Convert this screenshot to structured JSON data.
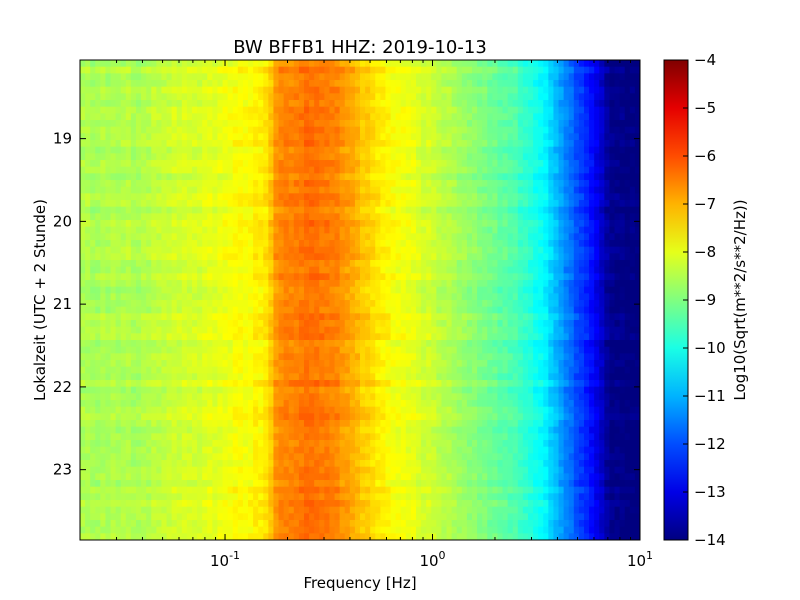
{
  "chart_data": {
    "type": "heatmap",
    "title": "BW BFFB1 HHZ: 2019-10-13",
    "xlabel": "Frequency [Hz]",
    "ylabel": "Lokalzeit (UTC + 2 Stunde)",
    "x_scale": "log",
    "xlim": [
      0.02,
      10
    ],
    "x_ticks": [
      {
        "value": 0.1,
        "base": "10",
        "exp": "-1"
      },
      {
        "value": 1,
        "base": "10",
        "exp": "0"
      },
      {
        "value": 10,
        "base": "10",
        "exp": "1"
      }
    ],
    "ylim": [
      18.05,
      23.85
    ],
    "y_inverted": true,
    "y_ticks": [
      "19",
      "20",
      "21",
      "22",
      "23"
    ],
    "colorbar": {
      "label": "Log10(Sqrt(m**2/s**2/Hz))",
      "range": [
        -14,
        -4
      ],
      "ticks": [
        "−4",
        "−5",
        "−6",
        "−7",
        "−8",
        "−9",
        "−10",
        "−11",
        "−12",
        "−13",
        "−14"
      ],
      "colormap": "jet"
    },
    "spectrum_profile": {
      "frequency_hz": [
        0.02,
        0.04,
        0.06,
        0.08,
        0.1,
        0.13,
        0.16,
        0.18,
        0.2,
        0.25,
        0.3,
        0.35,
        0.4,
        0.5,
        0.6,
        0.8,
        1.0,
        1.3,
        1.6,
        2.0,
        2.5,
        3.0,
        3.5,
        4.0,
        5.0,
        6.0,
        7.0,
        8.0,
        10.0
      ],
      "log10_amplitude": [
        -8.6,
        -8.5,
        -8.2,
        -8.1,
        -7.9,
        -7.8,
        -7.5,
        -6.6,
        -6.5,
        -6.4,
        -6.5,
        -6.6,
        -6.9,
        -7.4,
        -7.7,
        -8.0,
        -8.3,
        -8.6,
        -8.9,
        -9.2,
        -9.5,
        -9.9,
        -10.4,
        -11.0,
        -12.0,
        -12.8,
        -13.8,
        -14.0,
        -14.0
      ]
    },
    "grid": false
  }
}
